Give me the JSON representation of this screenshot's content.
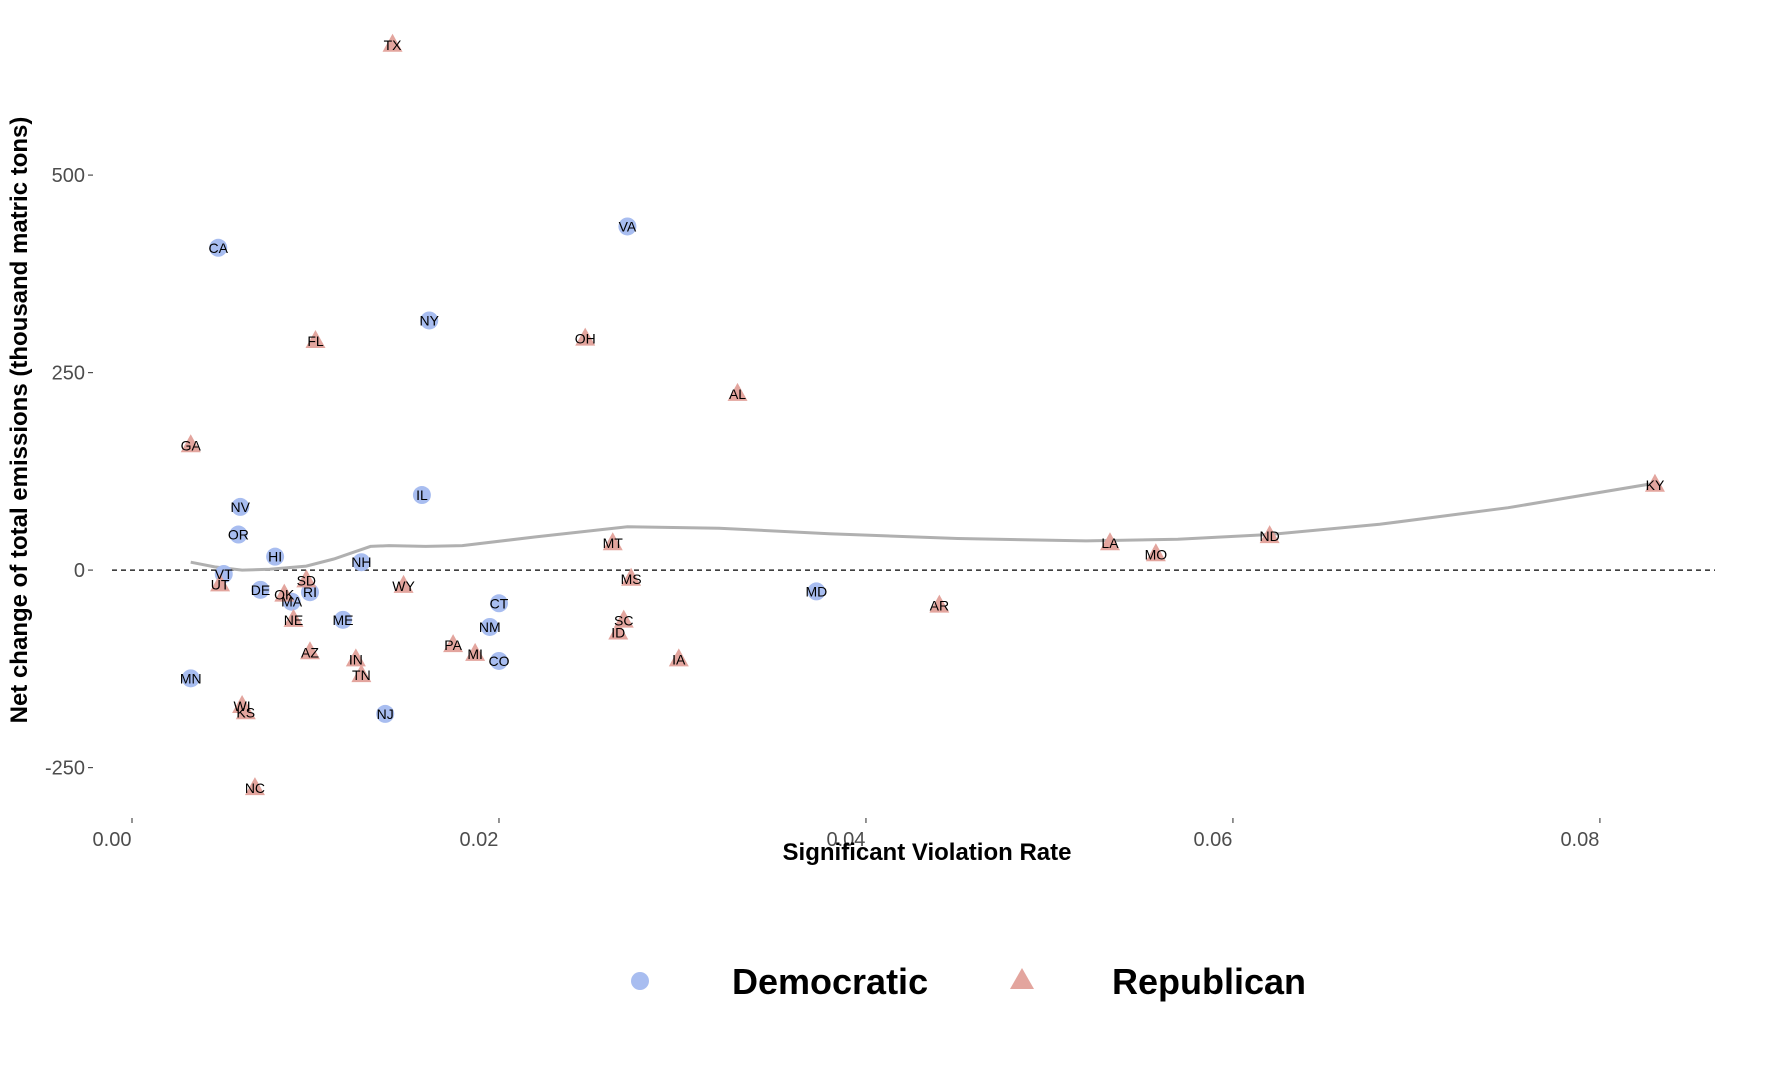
{
  "chart_data": {
    "type": "scatter",
    "xlabel": "Significant Violation Rate",
    "ylabel": "Net change of total emissions (thousand matric tons)",
    "xlim": [
      0.0,
      0.086
    ],
    "ylim": [
      -310,
      690
    ],
    "x_ticks": [
      0.0,
      0.02,
      0.04,
      0.06,
      0.08
    ],
    "x_tick_labels": [
      "0.00",
      "0.02",
      "0.04",
      "0.06",
      "0.08"
    ],
    "y_ticks": [
      -250,
      0,
      250,
      500
    ],
    "y_tick_labels": [
      "-250",
      "0",
      "250",
      "500"
    ],
    "reference_line_y": 0,
    "grid": false,
    "legend_position": "bottom",
    "colors": {
      "Democratic": "#a8bdf0",
      "Republican": "#e3a59e",
      "smooth": "#b0b0b0"
    },
    "series": [
      {
        "name": "Democratic",
        "marker": "circle",
        "points": [
          {
            "label": "CA",
            "x": 0.0047,
            "y": 408
          },
          {
            "label": "VA",
            "x": 0.027,
            "y": 435
          },
          {
            "label": "NY",
            "x": 0.0162,
            "y": 316
          },
          {
            "label": "IL",
            "x": 0.0158,
            "y": 95
          },
          {
            "label": "NV",
            "x": 0.0059,
            "y": 80
          },
          {
            "label": "OR",
            "x": 0.0058,
            "y": 45
          },
          {
            "label": "HI",
            "x": 0.0078,
            "y": 17
          },
          {
            "label": "NH",
            "x": 0.0125,
            "y": 10
          },
          {
            "label": "VT",
            "x": 0.005,
            "y": -5
          },
          {
            "label": "DE",
            "x": 0.007,
            "y": -25
          },
          {
            "label": "MA",
            "x": 0.0087,
            "y": -40
          },
          {
            "label": "RI",
            "x": 0.0097,
            "y": -28
          },
          {
            "label": "ME",
            "x": 0.0115,
            "y": -63
          },
          {
            "label": "CT",
            "x": 0.02,
            "y": -42
          },
          {
            "label": "NM",
            "x": 0.0195,
            "y": -72
          },
          {
            "label": "CO",
            "x": 0.02,
            "y": -115
          },
          {
            "label": "MD",
            "x": 0.0373,
            "y": -27
          },
          {
            "label": "MN",
            "x": 0.0032,
            "y": -137
          },
          {
            "label": "NJ",
            "x": 0.0138,
            "y": -182
          }
        ]
      },
      {
        "name": "Republican",
        "marker": "triangle",
        "points": [
          {
            "label": "TX",
            "x": 0.0142,
            "y": 665
          },
          {
            "label": "FL",
            "x": 0.01,
            "y": 290
          },
          {
            "label": "OH",
            "x": 0.0247,
            "y": 293
          },
          {
            "label": "AL",
            "x": 0.033,
            "y": 223
          },
          {
            "label": "GA",
            "x": 0.0032,
            "y": 158
          },
          {
            "label": "KY",
            "x": 0.083,
            "y": 108
          },
          {
            "label": "ND",
            "x": 0.062,
            "y": 43
          },
          {
            "label": "LA",
            "x": 0.0533,
            "y": 34
          },
          {
            "label": "MO",
            "x": 0.0558,
            "y": 20
          },
          {
            "label": "MT",
            "x": 0.0262,
            "y": 34
          },
          {
            "label": "MS",
            "x": 0.0272,
            "y": -11
          },
          {
            "label": "SC",
            "x": 0.0268,
            "y": -64
          },
          {
            "label": "ID",
            "x": 0.0265,
            "y": -79
          },
          {
            "label": "IA",
            "x": 0.0298,
            "y": -113
          },
          {
            "label": "AR",
            "x": 0.044,
            "y": -45
          },
          {
            "label": "PA",
            "x": 0.0175,
            "y": -95
          },
          {
            "label": "MI",
            "x": 0.0187,
            "y": -106
          },
          {
            "label": "IN",
            "x": 0.0122,
            "y": -113
          },
          {
            "label": "TN",
            "x": 0.0125,
            "y": -133
          },
          {
            "label": "WY",
            "x": 0.0148,
            "y": -20
          },
          {
            "label": "SD",
            "x": 0.0095,
            "y": -13
          },
          {
            "label": "OK",
            "x": 0.0083,
            "y": -31
          },
          {
            "label": "NE",
            "x": 0.0088,
            "y": -63
          },
          {
            "label": "AZ",
            "x": 0.0097,
            "y": -104
          },
          {
            "label": "UT",
            "x": 0.0048,
            "y": -18
          },
          {
            "label": "WI",
            "x": 0.006,
            "y": -172
          },
          {
            "label": "KS",
            "x": 0.0062,
            "y": -180
          },
          {
            "label": "NC",
            "x": 0.0067,
            "y": -276
          }
        ]
      }
    ],
    "smooth_line": {
      "x": [
        0.0032,
        0.0045,
        0.006,
        0.0075,
        0.0095,
        0.011,
        0.012,
        0.013,
        0.014,
        0.016,
        0.018,
        0.022,
        0.027,
        0.032,
        0.038,
        0.045,
        0.052,
        0.057,
        0.062,
        0.068,
        0.075,
        0.083
      ],
      "y": [
        10,
        4,
        0,
        1,
        5,
        14,
        22,
        30,
        31,
        30,
        31,
        42,
        55,
        53,
        46,
        40,
        37,
        39,
        45,
        58,
        79,
        110
      ]
    }
  }
}
